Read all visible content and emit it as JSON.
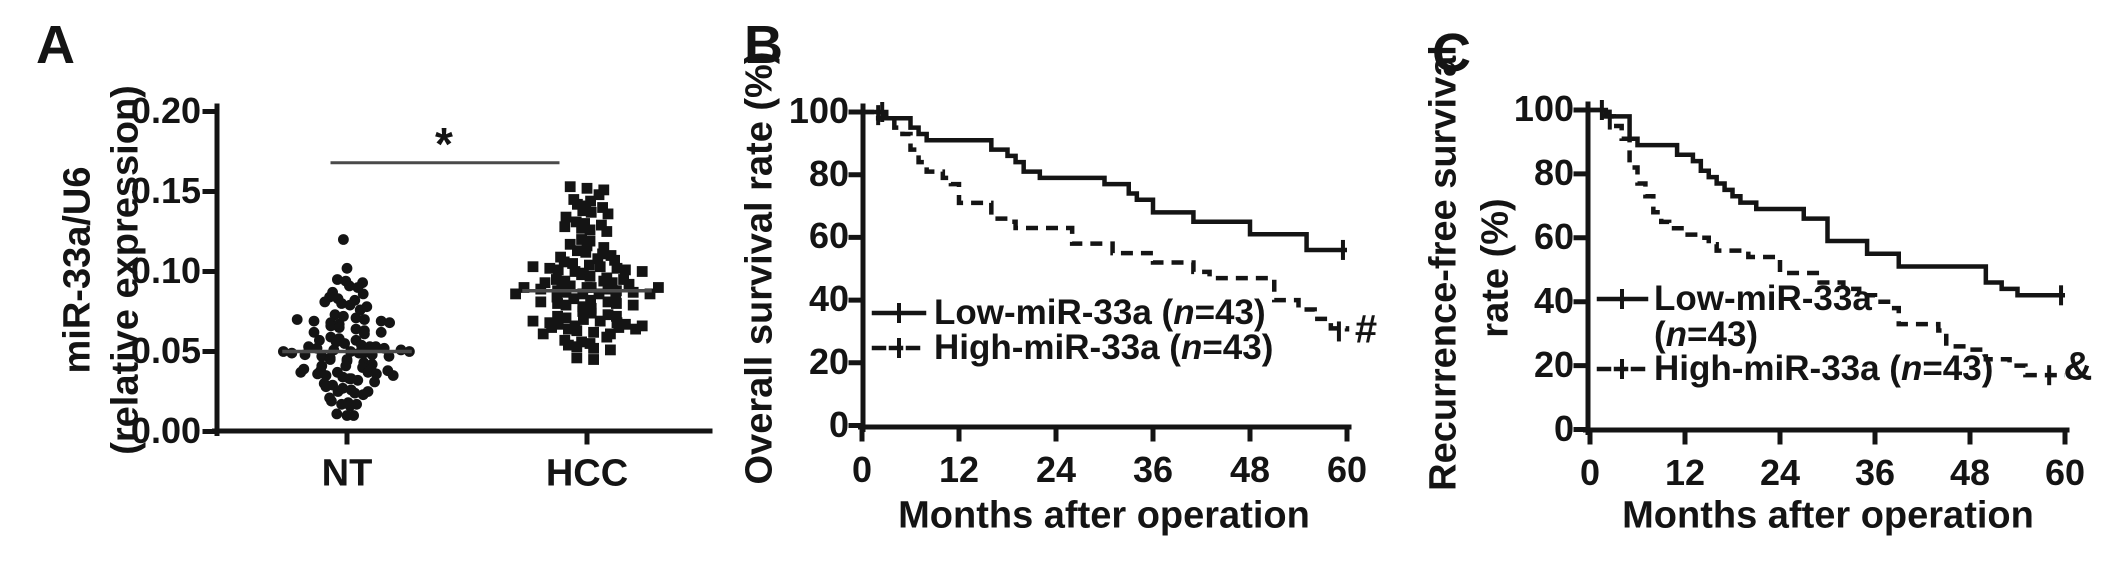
{
  "figure": {
    "background": "#ffffff",
    "ink": "#141414",
    "gray_line": "#4a4a4a"
  },
  "panels": {
    "A": {
      "letter": "A",
      "y_title_line1": "miR-33a/U6",
      "y_title_line2": "(relative expression)",
      "y_tick_labels": [
        "0.00",
        "0.05",
        "0.10",
        "0.15",
        "0.20"
      ],
      "categories": [
        "NT",
        "HCC"
      ],
      "significance_label": "*"
    },
    "B": {
      "letter": "B",
      "y_title": "Overall survival rate (%)",
      "x_title": "Months after operation",
      "legend": [
        {
          "pre": "Low-miR-33a (",
          "n": "n",
          "post": "=43)"
        },
        {
          "pre": "High-miR-33a (",
          "n": "n",
          "post": "=43)"
        }
      ],
      "annotation": "#"
    },
    "C": {
      "letter": "C",
      "y_title_line1": "Recurrence-free survival",
      "y_title_line2": "rate (%)",
      "x_title": "Months after operation",
      "legend_low_line1": "Low-miR-33a",
      "legend_low_line2_pre": "(",
      "legend_low_n": "n",
      "legend_low_line2_post": "=43)",
      "legend_high_pre": "High-miR-33a (",
      "legend_high_n": "n",
      "legend_high_post": "=43)",
      "annotation": "&"
    }
  },
  "chart_data": [
    {
      "panel": "A",
      "type": "scatter",
      "subtype": "beeswarm-dot-plot",
      "ylabel": "miR-33a/U6 (relative expression)",
      "ylim": [
        0,
        0.2
      ],
      "y_ticks": [
        0,
        0.05,
        0.1,
        0.15,
        0.2
      ],
      "categories": [
        "NT",
        "HCC"
      ],
      "groups": [
        {
          "name": "NT",
          "marker": "circle",
          "median": 0.05,
          "rows": [
            [
              0.118,
              1
            ],
            [
              0.103,
              1
            ],
            [
              0.094,
              3
            ],
            [
              0.089,
              3
            ],
            [
              0.084,
              4
            ],
            [
              0.079,
              4
            ],
            [
              0.074,
              3
            ],
            [
              0.069,
              8
            ],
            [
              0.064,
              6
            ],
            [
              0.059,
              4
            ],
            [
              0.055,
              5
            ],
            [
              0.051,
              11
            ],
            [
              0.047,
              7
            ],
            [
              0.043,
              5
            ],
            [
              0.039,
              7
            ],
            [
              0.035,
              8
            ],
            [
              0.031,
              5
            ],
            [
              0.027,
              4
            ],
            [
              0.023,
              4
            ],
            [
              0.019,
              3
            ],
            [
              0.015,
              2
            ],
            [
              0.012,
              2
            ],
            [
              0.009,
              1
            ]
          ]
        },
        {
          "name": "HCC",
          "marker": "square",
          "median": 0.088,
          "rows": [
            [
              0.151,
              3
            ],
            [
              0.146,
              3
            ],
            [
              0.141,
              3
            ],
            [
              0.136,
              4
            ],
            [
              0.131,
              3
            ],
            [
              0.126,
              4
            ],
            [
              0.121,
              2
            ],
            [
              0.116,
              3
            ],
            [
              0.111,
              5
            ],
            [
              0.106,
              5
            ],
            [
              0.101,
              9
            ],
            [
              0.096,
              6
            ],
            [
              0.092,
              7
            ],
            [
              0.088,
              12
            ],
            [
              0.084,
              5
            ],
            [
              0.079,
              8
            ],
            [
              0.073,
              6
            ],
            [
              0.068,
              9
            ],
            [
              0.063,
              8
            ],
            [
              0.057,
              4
            ],
            [
              0.052,
              4
            ],
            [
              0.047,
              2
            ]
          ]
        }
      ],
      "significance": {
        "label": "*",
        "level": 0.168,
        "between": [
          "NT",
          "HCC"
        ]
      }
    },
    {
      "panel": "B",
      "type": "line",
      "subtype": "kaplan-meier",
      "xlabel": "Months after operation",
      "ylabel": "Overall survival rate (%)",
      "xlim": [
        0,
        60
      ],
      "ylim": [
        0,
        100
      ],
      "x_ticks": [
        0,
        12,
        24,
        36,
        48,
        60
      ],
      "y_ticks": [
        0,
        20,
        40,
        60,
        80,
        100
      ],
      "series": [
        {
          "name": "Low-miR-33a (n=43)",
          "style": "solid",
          "steps": [
            [
              0,
              100
            ],
            [
              3,
              98
            ],
            [
              6,
              95
            ],
            [
              7,
              93
            ],
            [
              8,
              91
            ],
            [
              16,
              88
            ],
            [
              18,
              86
            ],
            [
              19,
              84
            ],
            [
              20,
              81
            ],
            [
              22,
              79
            ],
            [
              30,
              77
            ],
            [
              33,
              74
            ],
            [
              34,
              72
            ],
            [
              36,
              68
            ],
            [
              41,
              65
            ],
            [
              48,
              61
            ],
            [
              55,
              56
            ],
            [
              60,
              56
            ]
          ],
          "censor_ticks": [
            [
              2.5,
              100
            ],
            [
              59.5,
              56
            ]
          ]
        },
        {
          "name": "High-miR-33a (n=43)",
          "style": "dashed",
          "steps": [
            [
              0,
              100
            ],
            [
              2,
              98
            ],
            [
              4,
              95
            ],
            [
              5,
              93
            ],
            [
              6,
              88
            ],
            [
              7,
              84
            ],
            [
              8,
              81
            ],
            [
              10,
              79
            ],
            [
              11,
              77
            ],
            [
              12,
              71
            ],
            [
              16,
              66
            ],
            [
              18,
              65
            ],
            [
              19,
              63
            ],
            [
              26,
              58
            ],
            [
              31,
              55
            ],
            [
              36,
              52
            ],
            [
              41,
              49
            ],
            [
              43,
              47
            ],
            [
              51,
              40
            ],
            [
              54,
              37
            ],
            [
              56,
              34
            ],
            [
              58,
              31
            ],
            [
              60,
              30
            ]
          ],
          "censor_ticks": [
            [
              2,
              99
            ],
            [
              59,
              30
            ]
          ]
        }
      ],
      "annotation": {
        "label": "#",
        "x": 61.5,
        "y": 30
      }
    },
    {
      "panel": "C",
      "type": "line",
      "subtype": "kaplan-meier",
      "xlabel": "Months after operation",
      "ylabel": "Recurrence-free survival rate (%)",
      "xlim": [
        0,
        60
      ],
      "ylim": [
        0,
        100
      ],
      "x_ticks": [
        0,
        12,
        24,
        36,
        48,
        60
      ],
      "y_ticks": [
        0,
        20,
        40,
        60,
        80,
        100
      ],
      "series": [
        {
          "name": "Low-miR-33a (n=43)",
          "style": "solid",
          "steps": [
            [
              0,
              100
            ],
            [
              2,
              98
            ],
            [
              5,
              91
            ],
            [
              6,
              89
            ],
            [
              11,
              86
            ],
            [
              13,
              84
            ],
            [
              14,
              81
            ],
            [
              15,
              79
            ],
            [
              16,
              77
            ],
            [
              17,
              75
            ],
            [
              18,
              73
            ],
            [
              19,
              71
            ],
            [
              21,
              69
            ],
            [
              27,
              66
            ],
            [
              30,
              59
            ],
            [
              35,
              55
            ],
            [
              39,
              51
            ],
            [
              50,
              46
            ],
            [
              52,
              44
            ],
            [
              54,
              42
            ],
            [
              60,
              42
            ]
          ],
          "censor_ticks": [
            [
              1.5,
              100
            ],
            [
              59.5,
              42
            ]
          ]
        },
        {
          "name": "High-miR-33a (n=43)",
          "style": "dashed",
          "steps": [
            [
              0,
              100
            ],
            [
              2,
              98
            ],
            [
              3,
              95
            ],
            [
              4,
              91
            ],
            [
              5,
              82
            ],
            [
              6,
              77
            ],
            [
              7,
              73
            ],
            [
              8,
              68
            ],
            [
              9,
              65
            ],
            [
              10,
              63
            ],
            [
              12,
              61
            ],
            [
              14,
              60
            ],
            [
              15,
              58
            ],
            [
              16,
              56
            ],
            [
              20,
              54
            ],
            [
              24,
              49
            ],
            [
              29,
              46
            ],
            [
              32,
              44
            ],
            [
              34,
              42
            ],
            [
              36,
              40
            ],
            [
              38,
              38
            ],
            [
              39,
              33
            ],
            [
              44,
              31
            ],
            [
              45,
              26
            ],
            [
              48,
              25
            ],
            [
              50,
              22
            ],
            [
              53,
              20
            ],
            [
              55,
              17
            ],
            [
              60,
              17
            ]
          ],
          "censor_ticks": [
            [
              2.5,
              97
            ],
            [
              58,
              17
            ]
          ]
        }
      ],
      "annotation": {
        "label": "&",
        "x": 61.5,
        "y": 17
      }
    }
  ]
}
